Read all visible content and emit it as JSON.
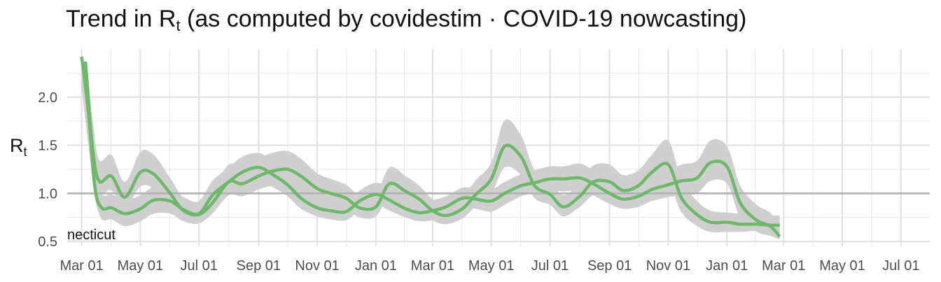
{
  "title": {
    "prefix": "Trend in R",
    "subscript": "t",
    "suffix": " (as computed by covidestim · COVID-19 nowcasting)"
  },
  "chart_data": {
    "type": "line",
    "title": "Trend in Rt (as computed by covidestim · COVID-19 nowcasting)",
    "xlabel": "",
    "ylabel": "Rt",
    "ylabel_main": "R",
    "ylabel_sub": "t",
    "annotation": "necticut",
    "xlim": [
      "2020-02-15",
      "2022-07-31"
    ],
    "ylim": [
      0.45,
      2.5
    ],
    "y_ticks": [
      0.5,
      1.0,
      1.5,
      2.0
    ],
    "y_tick_labels": [
      "0.5",
      "1.0",
      "1.5",
      "2.0"
    ],
    "x_tick_dates": [
      "2020-03-01",
      "2020-05-01",
      "2020-07-01",
      "2020-09-01",
      "2020-11-01",
      "2021-01-01",
      "2021-03-01",
      "2021-05-01",
      "2021-07-01",
      "2021-09-01",
      "2021-11-01",
      "2022-01-01",
      "2022-03-01",
      "2022-05-01",
      "2022-07-01"
    ],
    "x_tick_labels": [
      "Mar 01",
      "May 01",
      "Jul 01",
      "Sep 01",
      "Nov 01",
      "Jan 01",
      "Mar 01",
      "May 01",
      "Jul 01",
      "Sep 01",
      "Nov 01",
      "Jan 01",
      "Mar 01",
      "May 01",
      "Jul 01"
    ],
    "reference_line": 1.0,
    "grid": true,
    "colors": {
      "line": "#6db86b",
      "band": "#cfcfcf",
      "reference": "#b0b0b0",
      "grid": "#e6e6e6"
    },
    "series": [
      {
        "x": [
          "2020-03-01",
          "2020-03-08",
          "2020-03-15",
          "2020-03-22",
          "2020-04-01",
          "2020-04-15",
          "2020-05-01",
          "2020-05-15",
          "2020-06-01",
          "2020-06-15",
          "2020-07-01",
          "2020-07-15",
          "2020-08-01",
          "2020-08-15",
          "2020-09-01",
          "2020-09-15",
          "2020-10-01",
          "2020-10-15",
          "2020-11-01",
          "2020-11-15",
          "2020-12-01",
          "2020-12-15",
          "2021-01-01",
          "2021-01-15",
          "2021-02-01",
          "2021-02-15",
          "2021-03-01",
          "2021-03-15",
          "2021-04-01",
          "2021-04-15",
          "2021-05-01",
          "2021-05-15",
          "2021-06-01",
          "2021-06-15",
          "2021-07-01",
          "2021-07-15",
          "2021-08-01",
          "2021-08-15",
          "2021-09-01",
          "2021-09-15",
          "2021-10-01",
          "2021-10-15",
          "2021-11-01",
          "2021-11-15",
          "2021-12-01",
          "2021-12-15",
          "2022-01-01",
          "2022-01-15",
          "2022-02-01",
          "2022-02-15",
          "2022-02-25"
        ],
        "y": [
          2.42,
          1.85,
          1.05,
          0.85,
          0.85,
          0.79,
          0.84,
          0.93,
          0.92,
          0.83,
          0.79,
          0.98,
          1.12,
          1.22,
          1.27,
          1.2,
          1.09,
          0.95,
          0.85,
          0.82,
          0.81,
          0.92,
          0.99,
          0.93,
          0.84,
          0.8,
          0.82,
          0.86,
          0.95,
          0.94,
          0.92,
          1.0,
          1.08,
          1.11,
          1.15,
          1.15,
          1.16,
          1.1,
          1.0,
          0.94,
          0.97,
          1.04,
          1.09,
          1.13,
          1.16,
          1.32,
          1.28,
          0.9,
          0.72,
          0.66,
          0.55
        ],
        "band_lower": [
          2.1,
          1.5,
          0.95,
          0.73,
          0.73,
          0.66,
          0.71,
          0.79,
          0.79,
          0.71,
          0.69,
          0.84,
          0.99,
          1.09,
          1.13,
          1.07,
          0.97,
          0.84,
          0.76,
          0.73,
          0.72,
          0.82,
          0.88,
          0.82,
          0.75,
          0.71,
          0.72,
          0.77,
          0.85,
          0.84,
          0.81,
          0.88,
          0.97,
          1.0,
          1.03,
          1.02,
          1.03,
          0.98,
          0.89,
          0.84,
          0.86,
          0.92,
          0.96,
          0.98,
          1.0,
          1.13,
          1.1,
          0.75,
          0.6,
          0.56,
          0.52
        ],
        "band_upper": [
          2.42,
          2.2,
          1.35,
          1.0,
          0.99,
          0.93,
          0.98,
          1.07,
          1.06,
          0.96,
          0.92,
          1.13,
          1.27,
          1.38,
          1.42,
          1.34,
          1.22,
          1.07,
          0.96,
          0.92,
          0.91,
          1.03,
          1.11,
          1.05,
          0.94,
          0.9,
          0.93,
          0.97,
          1.06,
          1.05,
          1.04,
          1.12,
          1.2,
          1.24,
          1.28,
          1.28,
          1.31,
          1.24,
          1.13,
          1.06,
          1.09,
          1.18,
          1.24,
          1.3,
          1.34,
          1.55,
          1.49,
          1.08,
          0.88,
          0.8,
          0.65
        ]
      },
      {
        "x": [
          "2020-03-05",
          "2020-03-12",
          "2020-03-19",
          "2020-04-01",
          "2020-04-15",
          "2020-05-01",
          "2020-05-15",
          "2020-06-01",
          "2020-06-15",
          "2020-07-01",
          "2020-07-15",
          "2020-08-01",
          "2020-08-15",
          "2020-09-01",
          "2020-09-15",
          "2020-10-01",
          "2020-10-15",
          "2020-11-01",
          "2020-11-15",
          "2020-12-01",
          "2020-12-15",
          "2021-01-01",
          "2021-01-15",
          "2021-02-01",
          "2021-02-15",
          "2021-03-01",
          "2021-03-15",
          "2021-04-01",
          "2021-04-15",
          "2021-05-01",
          "2021-05-15",
          "2021-06-01",
          "2021-06-15",
          "2021-07-01",
          "2021-07-15",
          "2021-08-01",
          "2021-08-15",
          "2021-09-01",
          "2021-09-15",
          "2021-10-01",
          "2021-10-15",
          "2021-11-01",
          "2021-11-15",
          "2021-12-01",
          "2021-12-15",
          "2022-01-01",
          "2022-01-15",
          "2022-02-01",
          "2022-02-15",
          "2022-02-25"
        ],
        "y": [
          2.37,
          1.5,
          1.13,
          1.18,
          0.96,
          1.22,
          1.2,
          1.0,
          0.82,
          0.78,
          0.9,
          1.12,
          1.1,
          1.18,
          1.23,
          1.25,
          1.18,
          1.05,
          1.0,
          0.95,
          0.85,
          0.86,
          1.1,
          1.02,
          0.94,
          0.82,
          0.77,
          0.84,
          0.99,
          1.15,
          1.49,
          1.38,
          1.08,
          0.99,
          0.86,
          0.97,
          1.12,
          1.12,
          1.03,
          1.08,
          1.22,
          1.3,
          0.95,
          0.78,
          0.7,
          0.7,
          0.68,
          0.68,
          0.67,
          0.67
        ],
        "band_lower": [
          2.05,
          1.3,
          1.0,
          1.03,
          0.85,
          1.07,
          1.05,
          0.87,
          0.72,
          0.69,
          0.79,
          0.98,
          0.97,
          1.04,
          1.08,
          1.1,
          1.04,
          0.92,
          0.88,
          0.84,
          0.75,
          0.76,
          0.97,
          0.9,
          0.83,
          0.72,
          0.68,
          0.74,
          0.87,
          1.0,
          1.27,
          1.19,
          0.95,
          0.88,
          0.76,
          0.86,
          0.98,
          0.98,
          0.9,
          0.95,
          1.06,
          1.1,
          0.8,
          0.66,
          0.6,
          0.6,
          0.6,
          0.61,
          0.6,
          0.6
        ],
        "band_upper": [
          2.37,
          1.8,
          1.35,
          1.4,
          1.12,
          1.43,
          1.4,
          1.16,
          0.95,
          0.9,
          1.04,
          1.3,
          1.27,
          1.36,
          1.42,
          1.44,
          1.36,
          1.21,
          1.15,
          1.09,
          0.98,
          0.99,
          1.27,
          1.18,
          1.08,
          0.94,
          0.89,
          0.97,
          1.14,
          1.32,
          1.76,
          1.6,
          1.24,
          1.13,
          0.98,
          1.11,
          1.29,
          1.3,
          1.19,
          1.24,
          1.4,
          1.55,
          1.13,
          0.92,
          0.82,
          0.8,
          0.79,
          0.78,
          0.77,
          0.77
        ]
      }
    ]
  }
}
